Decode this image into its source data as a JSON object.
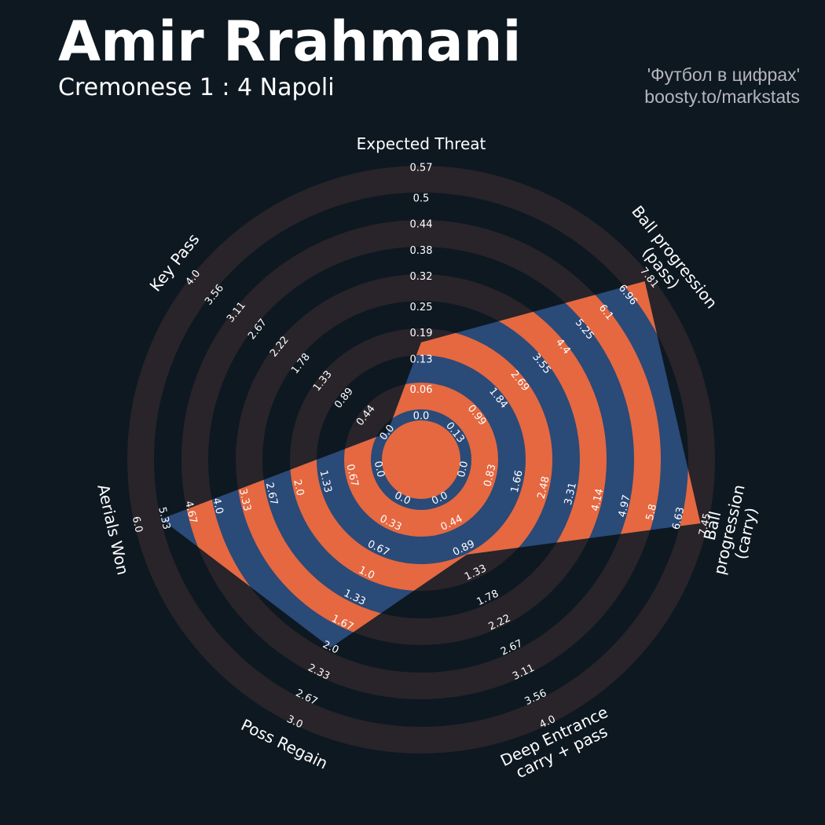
{
  "chart_data": {
    "type": "radar",
    "title": "Amir Rrahmani",
    "subtitle": "Cremonese 1 : 4 Napoli",
    "credits": [
      "'Футбол в цифрах'",
      "boosty.to/markstats"
    ],
    "params": [
      "Expected Threat",
      "Ball progression (pass)",
      "Ball progression (carry)",
      "Deep Entrance\ncarry + pass",
      "Poss Regain",
      "Aerials Won",
      "Key Pass"
    ],
    "values": [
      0.17,
      7.64,
      7.3,
      1.0,
      2.0,
      5.4,
      0
    ],
    "ranges": [
      [
        0,
        0.57
      ],
      [
        0.13,
        7.81
      ],
      [
        0,
        7.45
      ],
      [
        0,
        4
      ],
      [
        0,
        3
      ],
      [
        0,
        6
      ],
      [
        0,
        4
      ]
    ],
    "ticks": [
      [
        {
          "value": 0,
          "label": "0.0"
        },
        0.06,
        0.13,
        0.19,
        0.25,
        0.32,
        0.38,
        0.44,
        0.5,
        0.57
      ],
      [
        0.13,
        0.99,
        1.84,
        2.69,
        3.55,
        4.4,
        5.25,
        6.1,
        6.96,
        7.81
      ],
      [
        {
          "value": 0,
          "label": "0.0"
        },
        0.83,
        1.66,
        2.48,
        3.31,
        4.14,
        4.97,
        5.8,
        6.63,
        7.45
      ],
      [
        {
          "value": 0,
          "label": "0.0"
        },
        0.44,
        0.89,
        1.33,
        1.78,
        2.22,
        2.67,
        3.11,
        3.56,
        {
          "value": 4,
          "label": "4.0"
        }
      ],
      [
        {
          "value": 0,
          "label": "0.0"
        },
        0.33,
        0.67,
        {
          "value": 1,
          "label": "1.0"
        },
        1.33,
        1.67,
        {
          "value": 2,
          "label": "2.0"
        },
        2.33,
        2.67,
        {
          "value": 3,
          "label": "3.0"
        }
      ],
      [
        {
          "value": 0,
          "label": "0.0"
        },
        0.67,
        1.33,
        {
          "value": 2,
          "label": "2.0"
        },
        2.67,
        3.33,
        {
          "value": 4,
          "label": "4.0"
        },
        4.67,
        5.33,
        {
          "value": 6,
          "label": "6.0"
        }
      ],
      [
        {
          "value": 0,
          "label": "0.0"
        },
        0.44,
        0.89,
        1.33,
        1.78,
        2.22,
        2.67,
        3.11,
        3.56,
        {
          "value": 4,
          "label": "4.0"
        }
      ]
    ],
    "colors": {
      "background": "#0e1821",
      "rings": "#28242a",
      "polygon": "#2a4a78",
      "polygon_rings": "#e56840"
    }
  }
}
